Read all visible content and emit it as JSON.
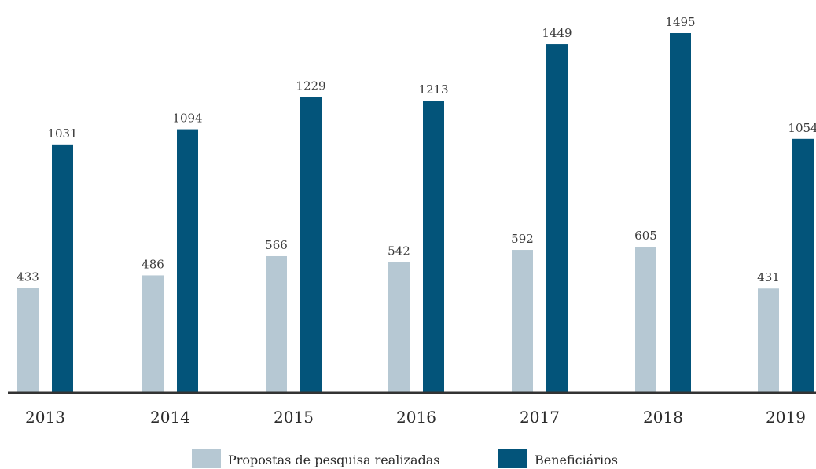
{
  "chart_data": {
    "type": "bar",
    "categories": [
      "2013",
      "2014",
      "2015",
      "2016",
      "2017",
      "2018",
      "2019"
    ],
    "series": [
      {
        "name": "Propostas de pesquisa realizadas",
        "values": [
          433,
          486,
          566,
          542,
          592,
          605,
          431
        ],
        "color": "#b6c8d3"
      },
      {
        "name": "Beneficiários",
        "values": [
          1031,
          1094,
          1229,
          1213,
          1449,
          1495,
          1054
        ],
        "color": "#03547a"
      }
    ],
    "title": "",
    "xlabel": "",
    "ylabel": "",
    "ylim": [
      0,
      1495
    ],
    "grid": false,
    "legend": "bottom-center",
    "axis_color": "#333333"
  }
}
